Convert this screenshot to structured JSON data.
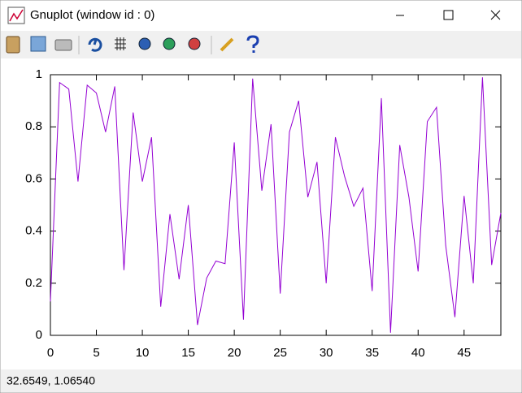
{
  "window": {
    "title": "Gnuplot (window id : 0)",
    "status": "32.6549,  1.06540"
  },
  "chart_data": {
    "type": "line",
    "x": [
      0,
      1,
      2,
      3,
      4,
      5,
      6,
      7,
      8,
      9,
      10,
      11,
      12,
      13,
      14,
      15,
      16,
      17,
      18,
      19,
      20,
      21,
      22,
      23,
      24,
      25,
      26,
      27,
      28,
      29,
      30,
      31,
      32,
      33,
      34,
      35,
      36,
      37,
      38,
      39,
      40,
      41,
      42,
      43,
      44,
      45,
      46,
      47,
      48,
      49
    ],
    "series": [
      {
        "color": "#9400d3",
        "values": [
          0.13,
          0.97,
          0.945,
          0.59,
          0.96,
          0.93,
          0.78,
          0.955,
          0.25,
          0.855,
          0.59,
          0.76,
          0.11,
          0.465,
          0.215,
          0.5,
          0.04,
          0.22,
          0.285,
          0.275,
          0.74,
          0.06,
          0.985,
          0.555,
          0.81,
          0.16,
          0.78,
          0.9,
          0.53,
          0.665,
          0.2,
          0.76,
          0.61,
          0.495,
          0.565,
          0.17,
          0.91,
          0.01,
          0.73,
          0.53,
          0.245,
          0.82,
          0.875,
          0.345,
          0.07,
          0.535,
          0.2,
          0.99,
          0.27,
          0.47
        ]
      }
    ],
    "xlim": [
      0,
      49
    ],
    "ylim": [
      0,
      1
    ],
    "xticks": [
      0,
      5,
      10,
      15,
      20,
      25,
      30,
      35,
      40,
      45
    ],
    "yticks": [
      0,
      0.2,
      0.4,
      0.6,
      0.8,
      1
    ],
    "grid": false
  }
}
